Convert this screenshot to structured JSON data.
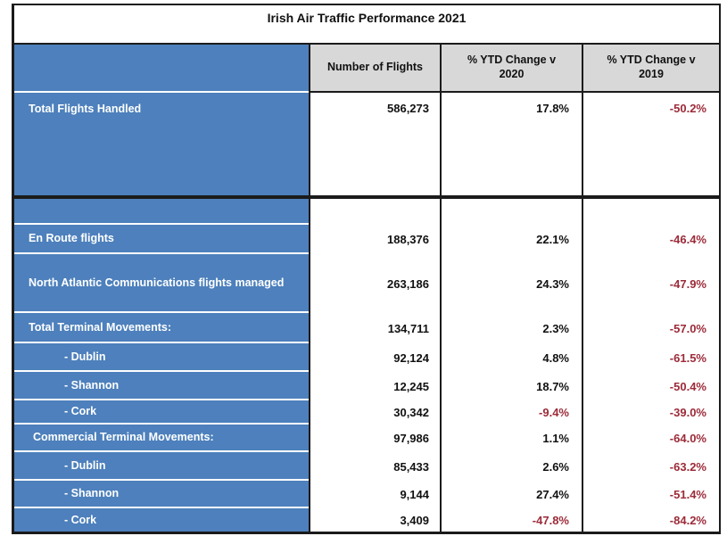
{
  "title": "Irish Air Traffic Performance 2021",
  "columns": [
    "Number of Flights",
    "% YTD Change v 2020",
    "% YTD Change v 2019"
  ],
  "rows": [
    {
      "label": "Total Flights Handled",
      "flights": "586,273",
      "ytd2020": "17.8%",
      "ytd2019": "-50.2%"
    },
    {
      "label": "En Route flights",
      "flights": "188,376",
      "ytd2020": "22.1%",
      "ytd2019": "-46.4%"
    },
    {
      "label": "North Atlantic Communications flights managed",
      "flights": "263,186",
      "ytd2020": "24.3%",
      "ytd2019": "-47.9%"
    },
    {
      "label": "Total Terminal Movements:",
      "flights": "134,711",
      "ytd2020": "2.3%",
      "ytd2019": "-57.0%"
    },
    {
      "label": "- Dublin",
      "flights": "92,124",
      "ytd2020": "4.8%",
      "ytd2019": "-61.5%"
    },
    {
      "label": "- Shannon",
      "flights": "12,245",
      "ytd2020": "18.7%",
      "ytd2019": "-50.4%"
    },
    {
      "label": "- Cork",
      "flights": "30,342",
      "ytd2020": "-9.4%",
      "ytd2019": "-39.0%"
    },
    {
      "label": "Commercial Terminal Movements:",
      "flights": "97,986",
      "ytd2020": "1.1%",
      "ytd2019": "-64.0%"
    },
    {
      "label": "- Dublin",
      "flights": "85,433",
      "ytd2020": "2.6%",
      "ytd2019": "-63.2%"
    },
    {
      "label": "- Shannon",
      "flights": "9,144",
      "ytd2020": "27.4%",
      "ytd2019": "-51.4%"
    },
    {
      "label": "- Cork",
      "flights": "3,409",
      "ytd2020": "-47.8%",
      "ytd2019": "-84.2%"
    }
  ],
  "colors": {
    "label_column_blue": "#4d80bc",
    "header_gray": "#d8d8d8",
    "negative_red": "#9c2b39",
    "positive_black": "#111111",
    "border_black": "#1b1b1b"
  },
  "chart_data": {
    "type": "table",
    "title": "Irish Air Traffic Performance 2021",
    "columns": [
      "",
      "Number of Flights",
      "% YTD Change v 2020",
      "% YTD Change v 2019"
    ],
    "rows": [
      [
        "Total Flights Handled",
        586273,
        17.8,
        -50.2
      ],
      [
        "En Route flights",
        188376,
        22.1,
        -46.4
      ],
      [
        "North Atlantic Communications flights managed",
        263186,
        24.3,
        -47.9
      ],
      [
        "Total Terminal Movements:",
        134711,
        2.3,
        -57.0
      ],
      [
        "- Dublin",
        92124,
        4.8,
        -61.5
      ],
      [
        "- Shannon",
        12245,
        18.7,
        -50.4
      ],
      [
        "- Cork",
        30342,
        -9.4,
        -39.0
      ],
      [
        "Commercial Terminal Movements:",
        97986,
        1.1,
        -64.0
      ],
      [
        "- Dublin",
        85433,
        2.6,
        -63.2
      ],
      [
        "- Shannon",
        9144,
        27.4,
        -51.4
      ],
      [
        "- Cork",
        3409,
        -47.8,
        -84.2
      ]
    ],
    "notes": "Negative percentage values rendered in dark red; positives in black. Layout: left label column blue with white row separators, header cells gray, values right-aligned."
  }
}
